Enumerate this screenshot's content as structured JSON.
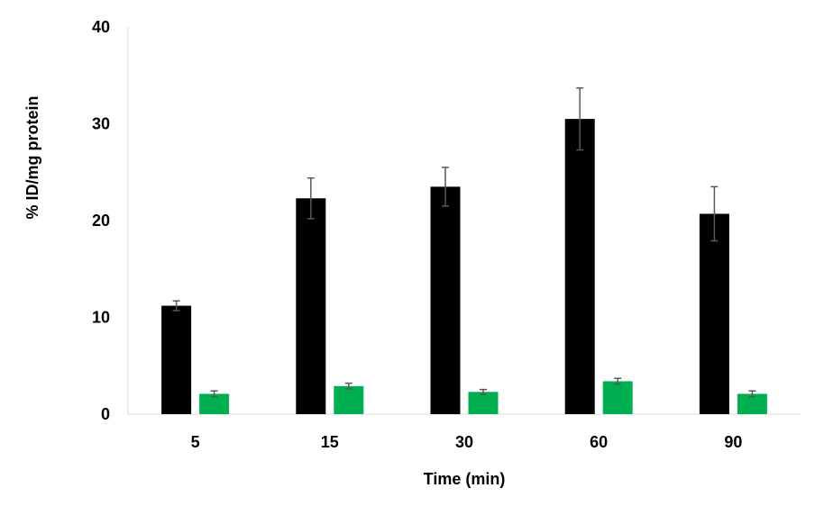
{
  "chart_data": {
    "type": "bar",
    "title": "",
    "xlabel": "Time (min)",
    "ylabel": "% ID/mg protein",
    "ylim": [
      0,
      40
    ],
    "yticks": [
      0,
      10,
      20,
      30,
      40
    ],
    "grid": false,
    "legend": "none",
    "categories": [
      "5",
      "15",
      "30",
      "60",
      "90"
    ],
    "series": [
      {
        "color": "#000000",
        "values": [
          11.2,
          22.3,
          23.5,
          30.5,
          20.7
        ],
        "errors": [
          0.5,
          2.1,
          2.0,
          3.2,
          2.8
        ]
      },
      {
        "color": "#00b050",
        "values": [
          2.1,
          2.9,
          2.3,
          3.4,
          2.1
        ],
        "errors": [
          0.3,
          0.3,
          0.25,
          0.3,
          0.3
        ]
      }
    ]
  }
}
